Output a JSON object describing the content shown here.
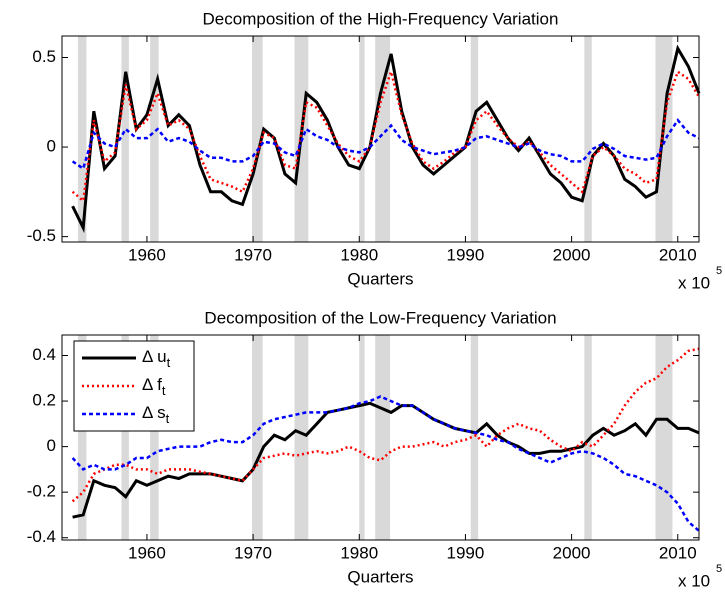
{
  "chart_data": [
    {
      "type": "line",
      "title": "Decomposition of the High-Frequency Variation",
      "xlabel": "Quarters",
      "x_offset_label": "x 10",
      "x_offset_exp": "5",
      "x": [
        1953,
        1954,
        1955,
        1956,
        1957,
        1958,
        1959,
        1960,
        1961,
        1962,
        1963,
        1964,
        1965,
        1966,
        1967,
        1968,
        1969,
        1970,
        1971,
        1972,
        1973,
        1974,
        1975,
        1976,
        1977,
        1978,
        1979,
        1980,
        1981,
        1982,
        1983,
        1984,
        1985,
        1986,
        1987,
        1988,
        1989,
        1990,
        1991,
        1992,
        1993,
        1994,
        1995,
        1996,
        1997,
        1998,
        1999,
        2000,
        2001,
        2002,
        2003,
        2004,
        2005,
        2006,
        2007,
        2008,
        2009,
        2010,
        2011,
        2012
      ],
      "xlim": [
        1952,
        2012
      ],
      "ylim": [
        -0.53,
        0.62
      ],
      "xticks": [
        1960,
        1970,
        1980,
        1990,
        2000,
        2010
      ],
      "yticks": [
        -0.5,
        0,
        0.5
      ],
      "grid": false,
      "recessions": [
        [
          1953.5,
          1954.3
        ],
        [
          1957.6,
          1958.3
        ],
        [
          1960.3,
          1961.1
        ],
        [
          1969.9,
          1970.9
        ],
        [
          1973.9,
          1975.2
        ],
        [
          1980.0,
          1980.5
        ],
        [
          1981.5,
          1982.9
        ],
        [
          1990.5,
          1991.2
        ],
        [
          2001.2,
          2001.9
        ],
        [
          2007.9,
          2009.5
        ]
      ],
      "recession_color": "#d9d9d9",
      "series": [
        {
          "color": "#000000",
          "style": "solid",
          "values": [
            -0.33,
            -0.45,
            0.2,
            -0.12,
            -0.05,
            0.42,
            0.1,
            0.18,
            0.38,
            0.12,
            0.18,
            0.12,
            -0.1,
            -0.25,
            -0.25,
            -0.3,
            -0.32,
            -0.15,
            0.1,
            0.05,
            -0.15,
            -0.2,
            0.3,
            0.25,
            0.15,
            0.0,
            -0.1,
            -0.12,
            0.0,
            0.3,
            0.52,
            0.2,
            0.0,
            -0.1,
            -0.15,
            -0.1,
            -0.05,
            0.0,
            0.2,
            0.25,
            0.15,
            0.05,
            -0.02,
            0.05,
            -0.05,
            -0.15,
            -0.2,
            -0.28,
            -0.3,
            -0.05,
            0.02,
            -0.05,
            -0.18,
            -0.22,
            -0.28,
            -0.25,
            0.3,
            0.55,
            0.45,
            0.3
          ]
        },
        {
          "color": "#ff0000",
          "style": "dotted",
          "values": [
            -0.25,
            -0.3,
            0.15,
            -0.08,
            -0.03,
            0.35,
            0.1,
            0.15,
            0.3,
            0.12,
            0.15,
            0.1,
            -0.05,
            -0.18,
            -0.2,
            -0.22,
            -0.25,
            -0.12,
            0.08,
            0.05,
            -0.1,
            -0.12,
            0.25,
            0.22,
            0.12,
            0.02,
            -0.05,
            -0.08,
            0.0,
            0.25,
            0.42,
            0.18,
            0.02,
            -0.08,
            -0.12,
            -0.08,
            -0.03,
            0.0,
            0.15,
            0.2,
            0.12,
            0.05,
            0.0,
            0.03,
            -0.03,
            -0.1,
            -0.15,
            -0.2,
            -0.25,
            -0.05,
            0.0,
            -0.05,
            -0.12,
            -0.15,
            -0.2,
            -0.18,
            0.25,
            0.42,
            0.38,
            0.28
          ]
        },
        {
          "color": "#0000ff",
          "style": "dashed",
          "values": [
            -0.08,
            -0.12,
            0.08,
            0.02,
            0.0,
            0.1,
            0.05,
            0.05,
            0.1,
            0.03,
            0.05,
            0.03,
            -0.02,
            -0.06,
            -0.06,
            -0.08,
            -0.08,
            -0.05,
            0.03,
            0.02,
            -0.03,
            -0.05,
            0.1,
            0.06,
            0.04,
            0.0,
            -0.02,
            -0.03,
            0.0,
            0.06,
            0.12,
            0.04,
            0.0,
            -0.02,
            -0.04,
            -0.03,
            -0.02,
            0.0,
            0.05,
            0.06,
            0.04,
            0.02,
            0.0,
            0.02,
            -0.02,
            -0.04,
            -0.05,
            -0.08,
            -0.08,
            -0.01,
            0.02,
            -0.01,
            -0.05,
            -0.06,
            -0.07,
            -0.06,
            0.06,
            0.15,
            0.08,
            0.05
          ]
        }
      ]
    },
    {
      "type": "line",
      "title": "Decomposition of the Low-Frequency Variation",
      "xlabel": "Quarters",
      "x_offset_label": "x 10",
      "x_offset_exp": "5",
      "x": [
        1953,
        1954,
        1955,
        1956,
        1957,
        1958,
        1959,
        1960,
        1961,
        1962,
        1963,
        1964,
        1965,
        1966,
        1967,
        1968,
        1969,
        1970,
        1971,
        1972,
        1973,
        1974,
        1975,
        1976,
        1977,
        1978,
        1979,
        1980,
        1981,
        1982,
        1983,
        1984,
        1985,
        1986,
        1987,
        1988,
        1989,
        1990,
        1991,
        1992,
        1993,
        1994,
        1995,
        1996,
        1997,
        1998,
        1999,
        2000,
        2001,
        2002,
        2003,
        2004,
        2005,
        2006,
        2007,
        2008,
        2009,
        2010,
        2011,
        2012
      ],
      "xlim": [
        1952,
        2012
      ],
      "ylim": [
        -0.41,
        0.49
      ],
      "xticks": [
        1960,
        1970,
        1980,
        1990,
        2000,
        2010
      ],
      "yticks": [
        -0.4,
        -0.2,
        0,
        0.2,
        0.4
      ],
      "grid": false,
      "legend": "upper left",
      "recessions": [
        [
          1953.5,
          1954.3
        ],
        [
          1957.6,
          1958.3
        ],
        [
          1960.3,
          1961.1
        ],
        [
          1969.9,
          1970.9
        ],
        [
          1973.9,
          1975.2
        ],
        [
          1980.0,
          1980.5
        ],
        [
          1981.5,
          1982.9
        ],
        [
          1990.5,
          1991.2
        ],
        [
          2001.2,
          2001.9
        ],
        [
          2007.9,
          2009.5
        ]
      ],
      "recession_color": "#d9d9d9",
      "series": [
        {
          "name": "Δ u",
          "subscript": "t",
          "color": "#000000",
          "style": "solid",
          "values": [
            -0.31,
            -0.3,
            -0.15,
            -0.17,
            -0.18,
            -0.22,
            -0.15,
            -0.17,
            -0.15,
            -0.13,
            -0.14,
            -0.12,
            -0.12,
            -0.12,
            -0.13,
            -0.14,
            -0.15,
            -0.1,
            0.0,
            0.05,
            0.03,
            0.07,
            0.05,
            0.1,
            0.15,
            0.16,
            0.17,
            0.18,
            0.19,
            0.17,
            0.15,
            0.18,
            0.18,
            0.15,
            0.12,
            0.1,
            0.08,
            0.07,
            0.06,
            0.1,
            0.05,
            0.02,
            0.0,
            -0.03,
            -0.03,
            -0.02,
            -0.02,
            -0.01,
            0.0,
            0.05,
            0.08,
            0.05,
            0.07,
            0.1,
            0.05,
            0.12,
            0.12,
            0.08,
            0.08,
            0.06
          ]
        },
        {
          "name": "Δ f",
          "subscript": "t",
          "color": "#ff0000",
          "style": "dotted",
          "values": [
            -0.24,
            -0.2,
            -0.12,
            -0.1,
            -0.08,
            -0.08,
            -0.1,
            -0.1,
            -0.12,
            -0.1,
            -0.1,
            -0.1,
            -0.11,
            -0.12,
            -0.13,
            -0.14,
            -0.15,
            -0.1,
            -0.05,
            -0.04,
            -0.03,
            -0.04,
            -0.03,
            -0.02,
            -0.03,
            -0.02,
            0.0,
            -0.02,
            -0.05,
            -0.06,
            -0.02,
            0.0,
            0.0,
            0.01,
            0.02,
            0.0,
            0.02,
            0.03,
            0.05,
            0.0,
            0.05,
            0.08,
            0.1,
            0.08,
            0.07,
            0.03,
            0.0,
            -0.02,
            0.02,
            0.0,
            0.05,
            0.1,
            0.18,
            0.24,
            0.28,
            0.3,
            0.35,
            0.38,
            0.42,
            0.43
          ]
        },
        {
          "name": "Δ s",
          "subscript": "t",
          "color": "#0000ff",
          "style": "dashed",
          "values": [
            -0.05,
            -0.1,
            -0.08,
            -0.1,
            -0.1,
            -0.08,
            -0.05,
            -0.05,
            -0.02,
            -0.01,
            0.0,
            0.0,
            0.0,
            0.02,
            0.03,
            0.02,
            0.02,
            0.05,
            0.1,
            0.12,
            0.13,
            0.14,
            0.15,
            0.15,
            0.15,
            0.16,
            0.17,
            0.19,
            0.2,
            0.22,
            0.2,
            0.18,
            0.18,
            0.15,
            0.12,
            0.1,
            0.08,
            0.07,
            0.06,
            0.05,
            0.03,
            0.02,
            -0.01,
            -0.03,
            -0.05,
            -0.07,
            -0.05,
            -0.03,
            -0.02,
            -0.03,
            -0.05,
            -0.08,
            -0.12,
            -0.13,
            -0.15,
            -0.17,
            -0.2,
            -0.25,
            -0.33,
            -0.37
          ]
        }
      ]
    }
  ]
}
